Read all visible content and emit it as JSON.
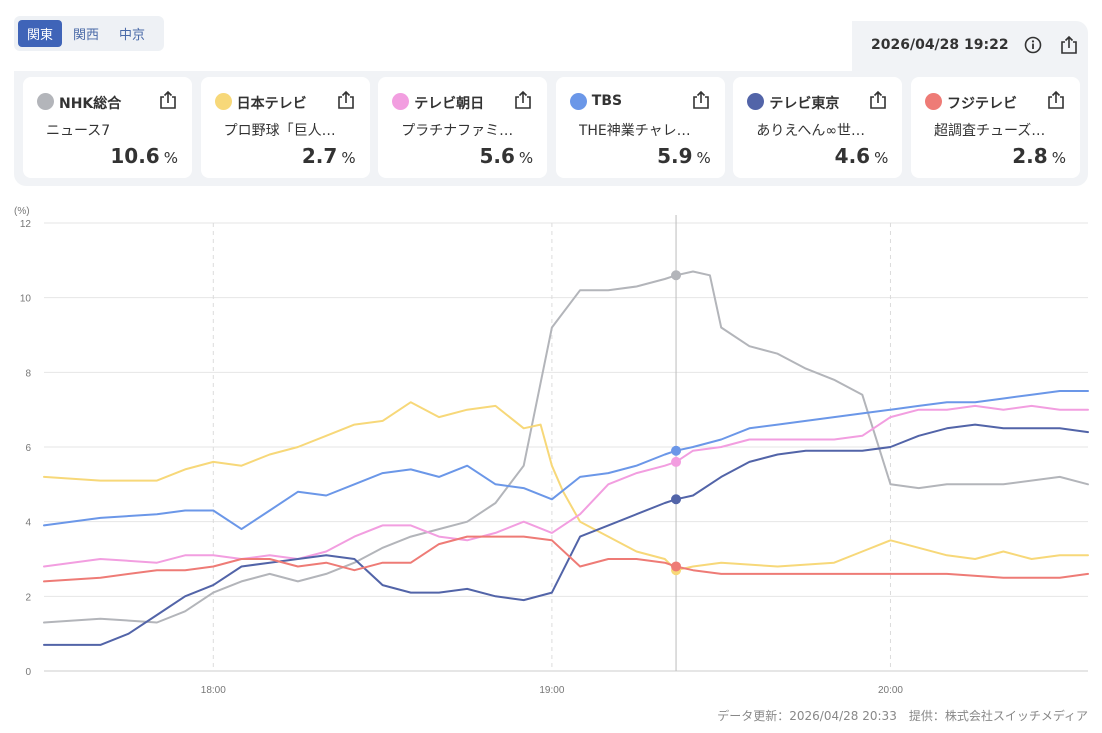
{
  "region_tabs": [
    {
      "label": "関東",
      "active": true
    },
    {
      "label": "関西",
      "active": false
    },
    {
      "label": "中京",
      "active": false
    }
  ],
  "timestamp": "2026/04/28 19:22",
  "icons": {
    "info": "info-icon",
    "share": "share-icon"
  },
  "stations": [
    {
      "name": "NHK総合",
      "program": "ニュース7",
      "value": "10.6",
      "unit": "%",
      "color": "#b3b5ba"
    },
    {
      "name": "日本テレビ",
      "program": "プロ野球「巨人…",
      "value": "2.7",
      "unit": "%",
      "color": "#f7d879"
    },
    {
      "name": "テレビ朝日",
      "program": "プラチナファミ…",
      "value": "5.6",
      "unit": "%",
      "color": "#f29ee0"
    },
    {
      "name": "TBS",
      "program": "THE神業チャレ…",
      "value": "5.9",
      "unit": "%",
      "color": "#6b97e8"
    },
    {
      "name": "テレビ東京",
      "program": "ありえへん∞世…",
      "value": "4.6",
      "unit": "%",
      "color": "#5264a8"
    },
    {
      "name": "フジテレビ",
      "program": "超調査チューズ…",
      "value": "2.8",
      "unit": "%",
      "color": "#ee7b76"
    }
  ],
  "footer": "データ更新：2026/04/28 20:33　提供：株式会社スイッチメディア",
  "chart_data": {
    "type": "line",
    "yunit": "(%)",
    "ylim": [
      0,
      12
    ],
    "yticks": [
      0,
      2,
      4,
      6,
      8,
      10,
      12
    ],
    "xlim": [
      "17:30",
      "20:35"
    ],
    "xticks": [
      "18:00",
      "19:00",
      "20:00"
    ],
    "cursor": "19:22",
    "grid": true,
    "series": [
      {
        "name": "NHK総合",
        "color": "#b3b5ba",
        "x": [
          "17:30",
          "17:40",
          "17:50",
          "17:55",
          "18:00",
          "18:05",
          "18:10",
          "18:15",
          "18:20",
          "18:25",
          "18:30",
          "18:35",
          "18:40",
          "18:45",
          "18:50",
          "18:55",
          "19:00",
          "19:05",
          "19:10",
          "19:15",
          "19:20",
          "19:22",
          "19:25",
          "19:28",
          "19:30",
          "19:35",
          "19:40",
          "19:45",
          "19:50",
          "19:55",
          "20:00",
          "20:05",
          "20:10",
          "20:20",
          "20:30",
          "20:35"
        ],
        "y": [
          1.3,
          1.4,
          1.3,
          1.6,
          2.1,
          2.4,
          2.6,
          2.4,
          2.6,
          2.9,
          3.3,
          3.6,
          3.8,
          4.0,
          4.5,
          5.5,
          9.2,
          10.2,
          10.2,
          10.3,
          10.5,
          10.6,
          10.7,
          10.6,
          9.2,
          8.7,
          8.5,
          8.1,
          7.8,
          7.4,
          5.0,
          4.9,
          5.0,
          5.0,
          5.2,
          5.0
        ]
      },
      {
        "name": "日本テレビ",
        "color": "#f7d879",
        "x": [
          "17:30",
          "17:40",
          "17:50",
          "17:55",
          "18:00",
          "18:05",
          "18:10",
          "18:15",
          "18:20",
          "18:25",
          "18:30",
          "18:35",
          "18:40",
          "18:45",
          "18:50",
          "18:55",
          "18:58",
          "19:00",
          "19:02",
          "19:05",
          "19:10",
          "19:15",
          "19:20",
          "19:22",
          "19:25",
          "19:30",
          "19:40",
          "19:50",
          "19:55",
          "20:00",
          "20:05",
          "20:10",
          "20:15",
          "20:20",
          "20:25",
          "20:30",
          "20:35"
        ],
        "y": [
          5.2,
          5.1,
          5.1,
          5.4,
          5.6,
          5.5,
          5.8,
          6.0,
          6.3,
          6.6,
          6.7,
          7.2,
          6.8,
          7.0,
          7.1,
          6.5,
          6.6,
          5.5,
          4.8,
          4.0,
          3.6,
          3.2,
          3.0,
          2.7,
          2.8,
          2.9,
          2.8,
          2.9,
          3.2,
          3.5,
          3.3,
          3.1,
          3.0,
          3.2,
          3.0,
          3.1,
          3.1
        ]
      },
      {
        "name": "テレビ朝日",
        "color": "#f29ee0",
        "x": [
          "17:30",
          "17:40",
          "17:50",
          "17:55",
          "18:00",
          "18:05",
          "18:10",
          "18:15",
          "18:20",
          "18:25",
          "18:30",
          "18:35",
          "18:40",
          "18:45",
          "18:50",
          "18:55",
          "19:00",
          "19:05",
          "19:10",
          "19:15",
          "19:20",
          "19:22",
          "19:25",
          "19:30",
          "19:35",
          "19:40",
          "19:45",
          "19:50",
          "19:55",
          "20:00",
          "20:05",
          "20:10",
          "20:15",
          "20:20",
          "20:25",
          "20:30",
          "20:35"
        ],
        "y": [
          2.8,
          3.0,
          2.9,
          3.1,
          3.1,
          3.0,
          3.1,
          3.0,
          3.2,
          3.6,
          3.9,
          3.9,
          3.6,
          3.5,
          3.7,
          4.0,
          3.7,
          4.2,
          5.0,
          5.3,
          5.5,
          5.6,
          5.9,
          6.0,
          6.2,
          6.2,
          6.2,
          6.2,
          6.3,
          6.8,
          7.0,
          7.0,
          7.1,
          7.0,
          7.1,
          7.0,
          7.0
        ]
      },
      {
        "name": "TBS",
        "color": "#6b97e8",
        "x": [
          "17:30",
          "17:40",
          "17:50",
          "17:55",
          "18:00",
          "18:05",
          "18:10",
          "18:15",
          "18:20",
          "18:25",
          "18:30",
          "18:35",
          "18:40",
          "18:45",
          "18:50",
          "18:55",
          "19:00",
          "19:05",
          "19:10",
          "19:15",
          "19:20",
          "19:22",
          "19:25",
          "19:30",
          "19:35",
          "19:40",
          "19:45",
          "19:50",
          "19:55",
          "20:00",
          "20:05",
          "20:10",
          "20:15",
          "20:20",
          "20:25",
          "20:30",
          "20:35"
        ],
        "y": [
          3.9,
          4.1,
          4.2,
          4.3,
          4.3,
          3.8,
          4.3,
          4.8,
          4.7,
          5.0,
          5.3,
          5.4,
          5.2,
          5.5,
          5.0,
          4.9,
          4.6,
          5.2,
          5.3,
          5.5,
          5.8,
          5.9,
          6.0,
          6.2,
          6.5,
          6.6,
          6.7,
          6.8,
          6.9,
          7.0,
          7.1,
          7.2,
          7.2,
          7.3,
          7.4,
          7.5,
          7.5
        ]
      },
      {
        "name": "テレビ東京",
        "color": "#5264a8",
        "x": [
          "17:30",
          "17:40",
          "17:45",
          "17:50",
          "17:55",
          "18:00",
          "18:05",
          "18:10",
          "18:15",
          "18:20",
          "18:25",
          "18:30",
          "18:35",
          "18:40",
          "18:45",
          "18:50",
          "18:55",
          "19:00",
          "19:05",
          "19:10",
          "19:15",
          "19:20",
          "19:22",
          "19:25",
          "19:30",
          "19:35",
          "19:40",
          "19:45",
          "19:50",
          "19:55",
          "20:00",
          "20:05",
          "20:10",
          "20:15",
          "20:20",
          "20:25",
          "20:30",
          "20:35"
        ],
        "y": [
          0.7,
          0.7,
          1.0,
          1.5,
          2.0,
          2.3,
          2.8,
          2.9,
          3.0,
          3.1,
          3.0,
          2.3,
          2.1,
          2.1,
          2.2,
          2.0,
          1.9,
          2.1,
          3.6,
          3.9,
          4.2,
          4.5,
          4.6,
          4.7,
          5.2,
          5.6,
          5.8,
          5.9,
          5.9,
          5.9,
          6.0,
          6.3,
          6.5,
          6.6,
          6.5,
          6.5,
          6.5,
          6.4
        ]
      },
      {
        "name": "フジテレビ",
        "color": "#ee7b76",
        "x": [
          "17:30",
          "17:40",
          "17:50",
          "17:55",
          "18:00",
          "18:05",
          "18:10",
          "18:15",
          "18:20",
          "18:25",
          "18:30",
          "18:35",
          "18:40",
          "18:45",
          "18:50",
          "18:55",
          "19:00",
          "19:05",
          "19:10",
          "19:15",
          "19:20",
          "19:22",
          "19:25",
          "19:30",
          "19:40",
          "19:50",
          "20:00",
          "20:10",
          "20:20",
          "20:30",
          "20:35"
        ],
        "y": [
          2.4,
          2.5,
          2.7,
          2.7,
          2.8,
          3.0,
          3.0,
          2.8,
          2.9,
          2.7,
          2.9,
          2.9,
          3.4,
          3.6,
          3.6,
          3.6,
          3.5,
          2.8,
          3.0,
          3.0,
          2.9,
          2.8,
          2.7,
          2.6,
          2.6,
          2.6,
          2.6,
          2.6,
          2.5,
          2.5,
          2.6
        ]
      }
    ]
  }
}
